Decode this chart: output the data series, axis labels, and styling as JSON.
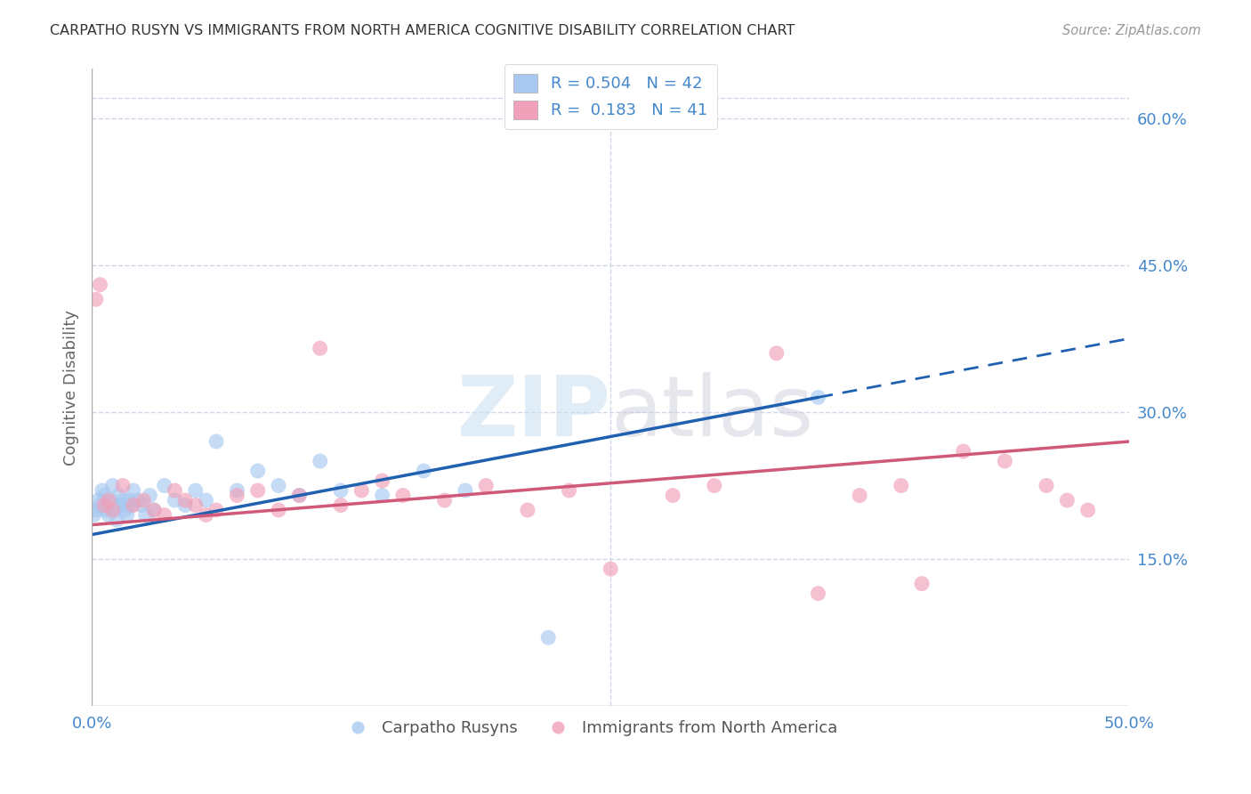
{
  "title": "CARPATHO RUSYN VS IMMIGRANTS FROM NORTH AMERICA COGNITIVE DISABILITY CORRELATION CHART",
  "source": "Source: ZipAtlas.com",
  "ylabel": "Cognitive Disability",
  "y_ticks_right": [
    "15.0%",
    "30.0%",
    "45.0%",
    "60.0%"
  ],
  "y_tick_vals": [
    15,
    30,
    45,
    60
  ],
  "legend_r1": "0.504",
  "legend_n1": "42",
  "legend_r2": "0.183",
  "legend_n2": "41",
  "blue_color": "#a8c8f0",
  "pink_color": "#f0a0b8",
  "blue_line_color": "#2060b0",
  "pink_line_color": "#d05878",
  "axis_color": "#4488cc",
  "grid_color": "#d0d8e8",
  "blue_x": [
    0.1,
    0.2,
    0.3,
    0.4,
    0.5,
    0.6,
    0.7,
    0.8,
    0.9,
    1.0,
    1.1,
    1.2,
    1.3,
    1.4,
    1.5,
    1.6,
    1.7,
    1.8,
    1.9,
    2.0,
    2.2,
    2.4,
    2.6,
    2.8,
    3.0,
    3.5,
    4.0,
    4.5,
    5.0,
    5.5,
    6.0,
    7.0,
    8.0,
    9.0,
    10.0,
    11.0,
    12.0,
    14.0,
    16.0,
    18.0,
    22.0,
    35.0
  ],
  "blue_y": [
    19.5,
    20.0,
    21.0,
    20.5,
    22.0,
    21.5,
    20.0,
    19.5,
    21.0,
    22.5,
    20.0,
    19.0,
    21.5,
    20.5,
    21.0,
    20.0,
    19.5,
    21.0,
    20.5,
    22.0,
    21.0,
    20.5,
    19.5,
    21.5,
    20.0,
    22.5,
    21.0,
    20.5,
    22.0,
    21.0,
    27.0,
    22.0,
    24.0,
    22.5,
    21.5,
    25.0,
    22.0,
    21.5,
    24.0,
    22.0,
    7.0,
    31.5
  ],
  "pink_x": [
    0.2,
    0.4,
    0.6,
    0.8,
    1.0,
    1.5,
    2.0,
    2.5,
    3.0,
    3.5,
    4.0,
    4.5,
    5.0,
    5.5,
    6.0,
    7.0,
    8.0,
    9.0,
    10.0,
    11.0,
    12.0,
    13.0,
    14.0,
    15.0,
    17.0,
    19.0,
    21.0,
    23.0,
    25.0,
    28.0,
    30.0,
    33.0,
    35.0,
    37.0,
    39.0,
    40.0,
    42.0,
    44.0,
    46.0,
    47.0,
    48.0
  ],
  "pink_y": [
    41.5,
    43.0,
    20.5,
    21.0,
    20.0,
    22.5,
    20.5,
    21.0,
    20.0,
    19.5,
    22.0,
    21.0,
    20.5,
    19.5,
    20.0,
    21.5,
    22.0,
    20.0,
    21.5,
    36.5,
    20.5,
    22.0,
    23.0,
    21.5,
    21.0,
    22.5,
    20.0,
    22.0,
    14.0,
    21.5,
    22.5,
    36.0,
    11.5,
    21.5,
    22.5,
    12.5,
    26.0,
    25.0,
    22.5,
    21.0,
    20.0
  ],
  "blue_line_x0": 0.0,
  "blue_line_y0": 17.5,
  "blue_line_x1": 35.0,
  "blue_line_y1": 31.5,
  "blue_dash_x0": 35.0,
  "blue_dash_y0": 31.5,
  "blue_dash_x1": 50.0,
  "blue_dash_y1": 37.5,
  "pink_line_x0": 0.0,
  "pink_line_y0": 18.5,
  "pink_line_x1": 50.0,
  "pink_line_y1": 27.0,
  "xlim": [
    0,
    50
  ],
  "ylim": [
    0,
    65
  ],
  "figwidth": 14.06,
  "figheight": 8.92
}
